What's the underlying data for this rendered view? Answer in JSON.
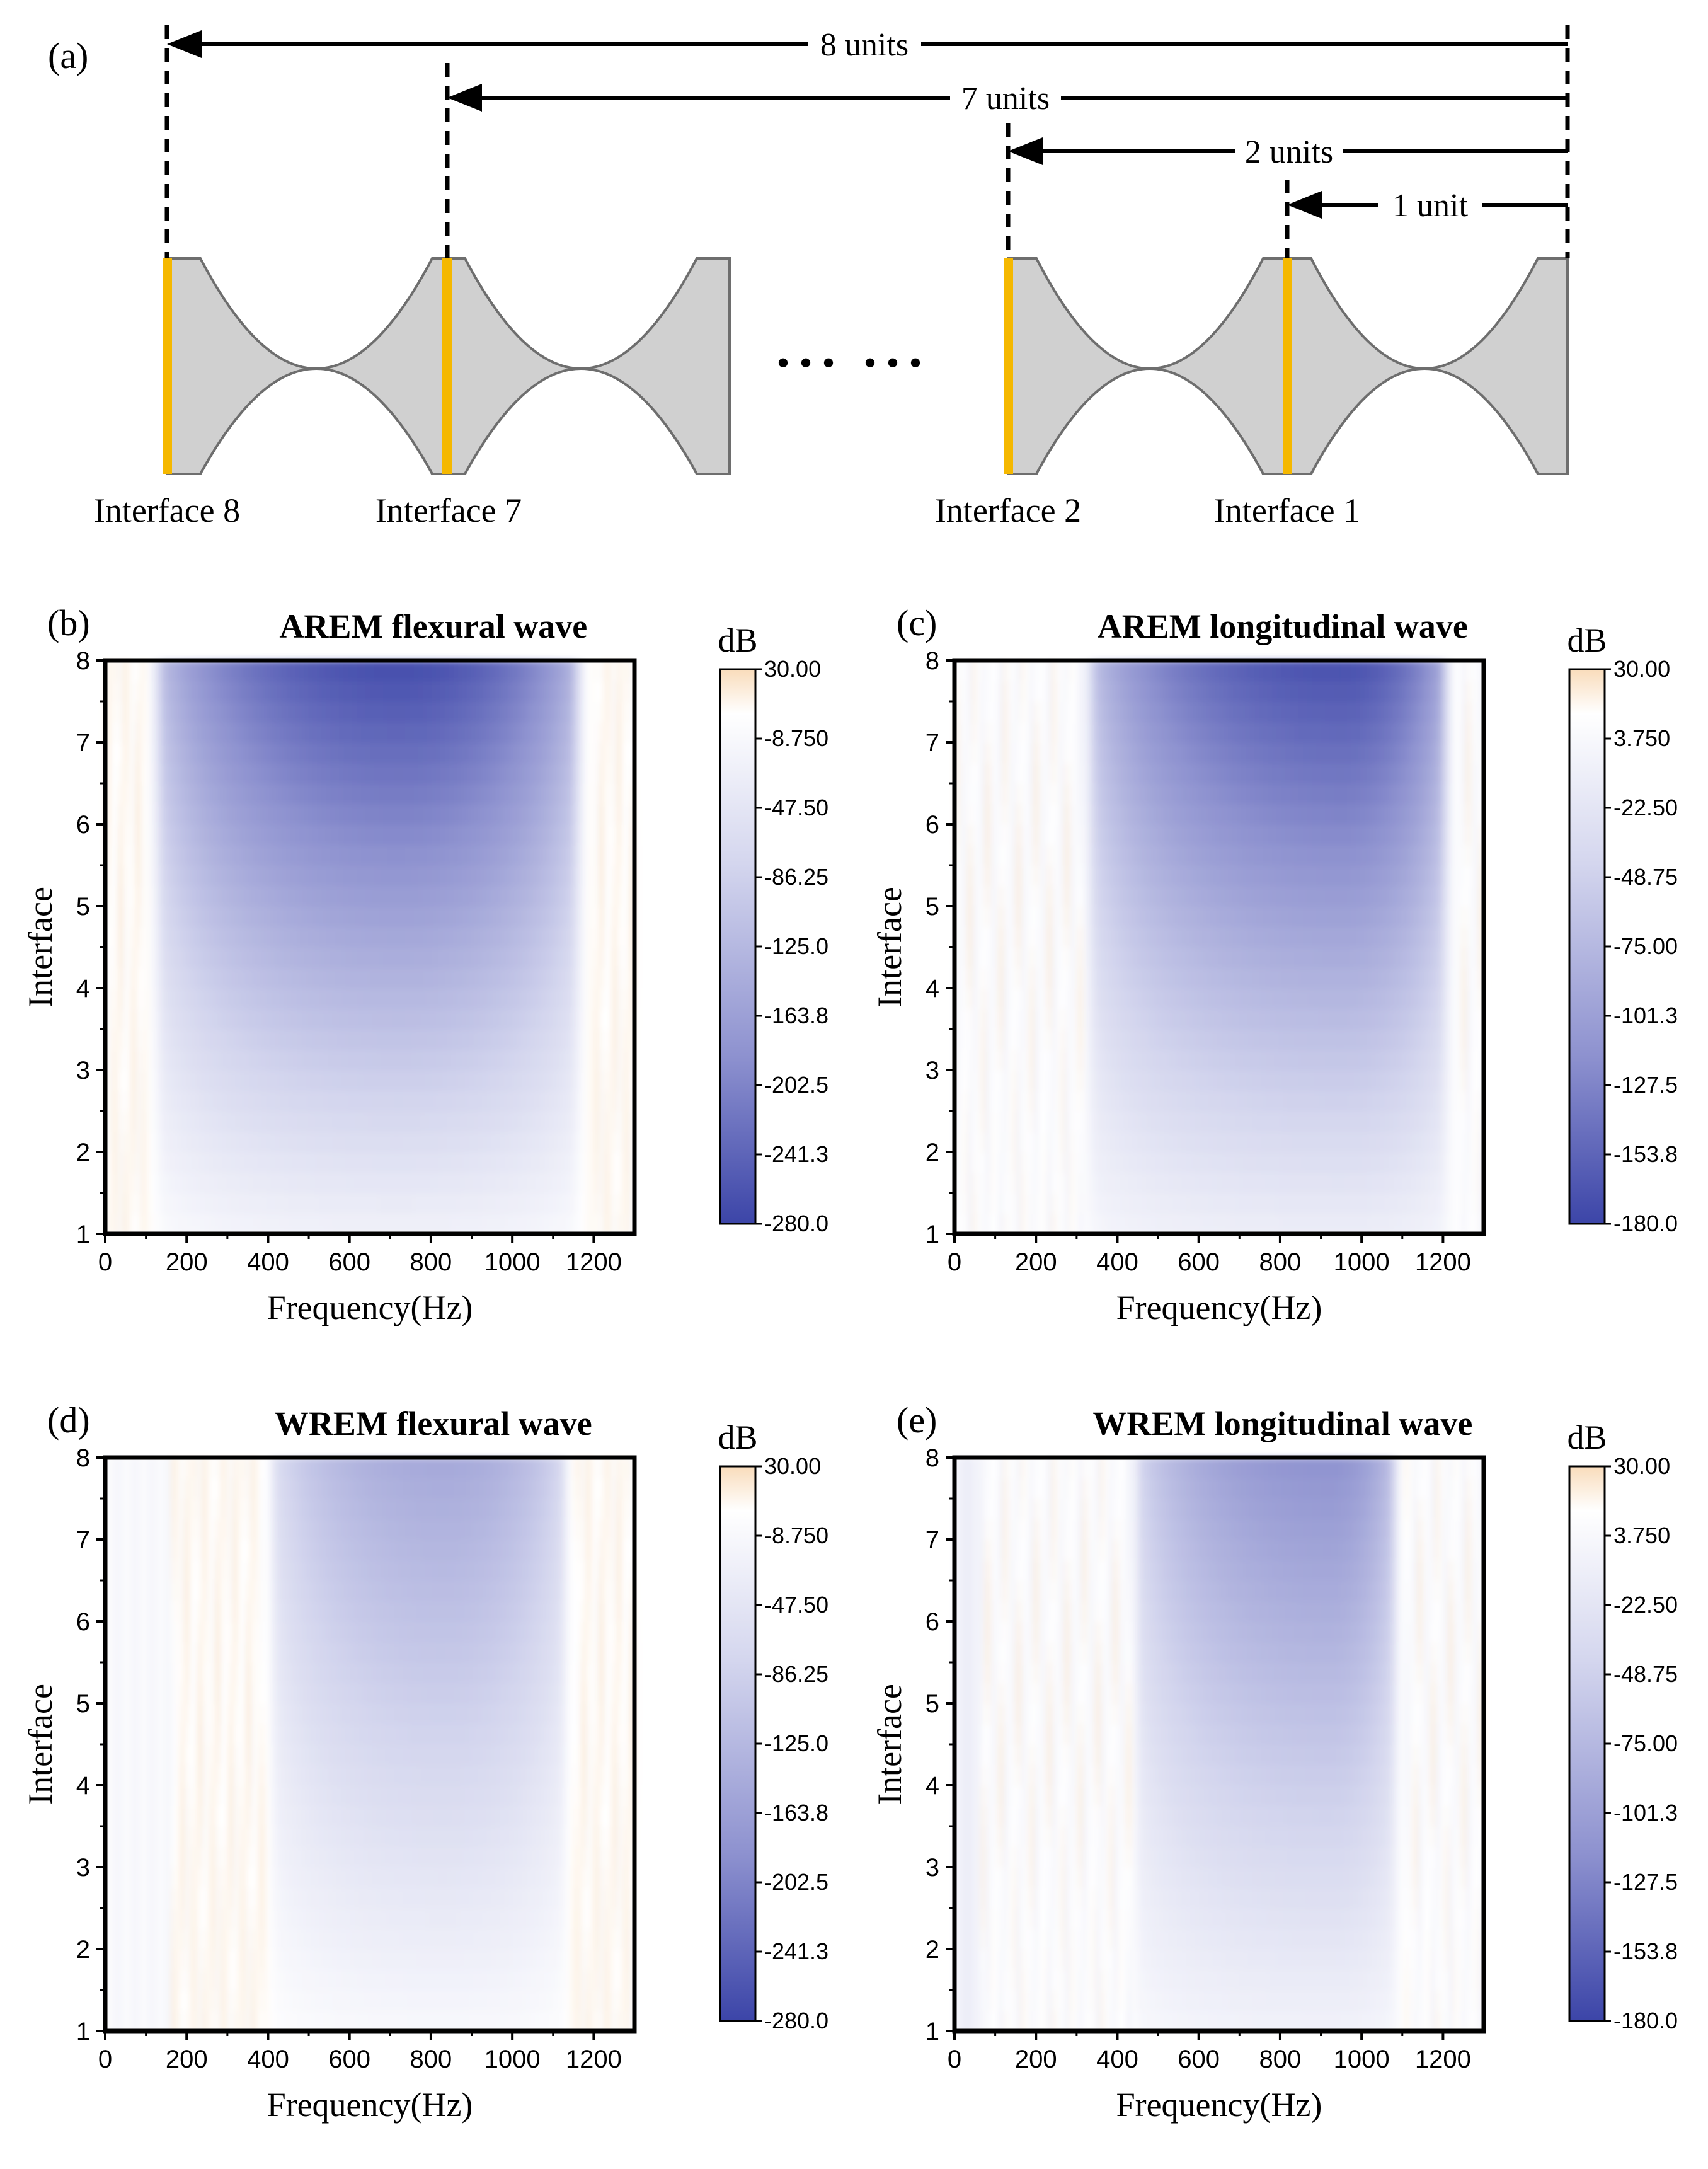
{
  "diagram": {
    "panel_label": "(a)",
    "distance_labels": [
      "8 units",
      "7 units",
      "2 units",
      "1 unit"
    ],
    "interface_labels": [
      "Interface 8",
      "Interface 7",
      "Interface 2",
      "Interface 1"
    ],
    "ellipsis": "• • •   • • •",
    "colors": {
      "beam": "#d0d0d0",
      "beam_edge": "#6e6e6e",
      "interface": "#f5b800"
    }
  },
  "chart_data": [
    {
      "type": "heatmap",
      "panel_label": "(b)",
      "title": "AREM flexural wave",
      "xlabel": "Frequency(Hz)",
      "ylabel": "Interface",
      "xlim": [
        0,
        1300
      ],
      "ylim": [
        1,
        8
      ],
      "xticks": [
        "0",
        "200",
        "400",
        "600",
        "800",
        "1000",
        "1200"
      ],
      "yticks": [
        "1",
        "2",
        "3",
        "4",
        "5",
        "6",
        "7",
        "8"
      ],
      "colorbar": {
        "unit": "dB",
        "range": [
          -280,
          30
        ],
        "ticks": [
          "30.00",
          "-8.750",
          "-47.50",
          "-86.25",
          "-125.0",
          "-163.8",
          "-202.5",
          "-241.3",
          "-280.0"
        ]
      },
      "pass_bands_hz": [
        [
          0,
          100
        ],
        [
          1190,
          1300
        ]
      ],
      "stop_band_hz": [
        100,
        1190
      ],
      "min_db": -270,
      "min_at_hz": 720
    },
    {
      "type": "heatmap",
      "panel_label": "(c)",
      "title": "AREM longitudinal wave",
      "xlabel": "Frequency(Hz)",
      "ylabel": "Interface",
      "xlim": [
        0,
        1300
      ],
      "ylim": [
        1,
        8
      ],
      "xticks": [
        "0",
        "200",
        "400",
        "600",
        "800",
        "1000",
        "1200"
      ],
      "yticks": [
        "1",
        "2",
        "3",
        "4",
        "5",
        "6",
        "7",
        "8"
      ],
      "colorbar": {
        "unit": "dB",
        "range": [
          -180,
          30
        ],
        "ticks": [
          "30.00",
          "3.750",
          "-22.50",
          "-48.75",
          "-75.00",
          "-101.3",
          "-127.5",
          "-153.8",
          "-180.0"
        ]
      },
      "pass_bands_hz": [
        [
          0,
          310
        ],
        [
          1230,
          1300
        ]
      ],
      "stop_band_hz": [
        310,
        1230
      ],
      "min_db": -170,
      "min_at_hz": 950
    },
    {
      "type": "heatmap",
      "panel_label": "(d)",
      "title": "WREM flexural wave",
      "xlabel": "Frequency(Hz)",
      "ylabel": "Interface",
      "xlim": [
        0,
        1300
      ],
      "ylim": [
        1,
        8
      ],
      "xticks": [
        "0",
        "200",
        "400",
        "600",
        "800",
        "1000",
        "1200"
      ],
      "yticks": [
        "1",
        "2",
        "3",
        "4",
        "5",
        "6",
        "7",
        "8"
      ],
      "colorbar": {
        "unit": "dB",
        "range": [
          -280,
          30
        ],
        "ticks": [
          "30.00",
          "-8.750",
          "-47.50",
          "-86.25",
          "-125.0",
          "-163.8",
          "-202.5",
          "-241.3",
          "-280.0"
        ]
      },
      "pass_bands_hz": [
        [
          160,
          390
        ],
        [
          1150,
          1300
        ]
      ],
      "stop_band_hz": [
        390,
        1150
      ],
      "min_db": -150,
      "min_at_hz": 830
    },
    {
      "type": "heatmap",
      "panel_label": "(e)",
      "title": "WREM longitudinal wave",
      "xlabel": "Frequency(Hz)",
      "ylabel": "Interface",
      "xlim": [
        0,
        1300
      ],
      "ylim": [
        1,
        8
      ],
      "xticks": [
        "0",
        "200",
        "400",
        "600",
        "800",
        "1000",
        "1200"
      ],
      "yticks": [
        "1",
        "2",
        "3",
        "4",
        "5",
        "6",
        "7",
        "8"
      ],
      "colorbar": {
        "unit": "dB",
        "range": [
          -180,
          30
        ],
        "ticks": [
          "30.00",
          "3.750",
          "-22.50",
          "-48.75",
          "-75.00",
          "-101.3",
          "-127.5",
          "-153.8",
          "-180.0"
        ]
      },
      "pass_bands_hz": [
        [
          60,
          430
        ],
        [
          1100,
          1300
        ]
      ],
      "stop_band_hz": [
        430,
        1100
      ],
      "min_db": -115,
      "min_at_hz": 920
    }
  ],
  "colors": {
    "cold": "#3d46a8",
    "mid": "#ffffff",
    "warm": "#f7d6b0",
    "axis": "#000000"
  }
}
